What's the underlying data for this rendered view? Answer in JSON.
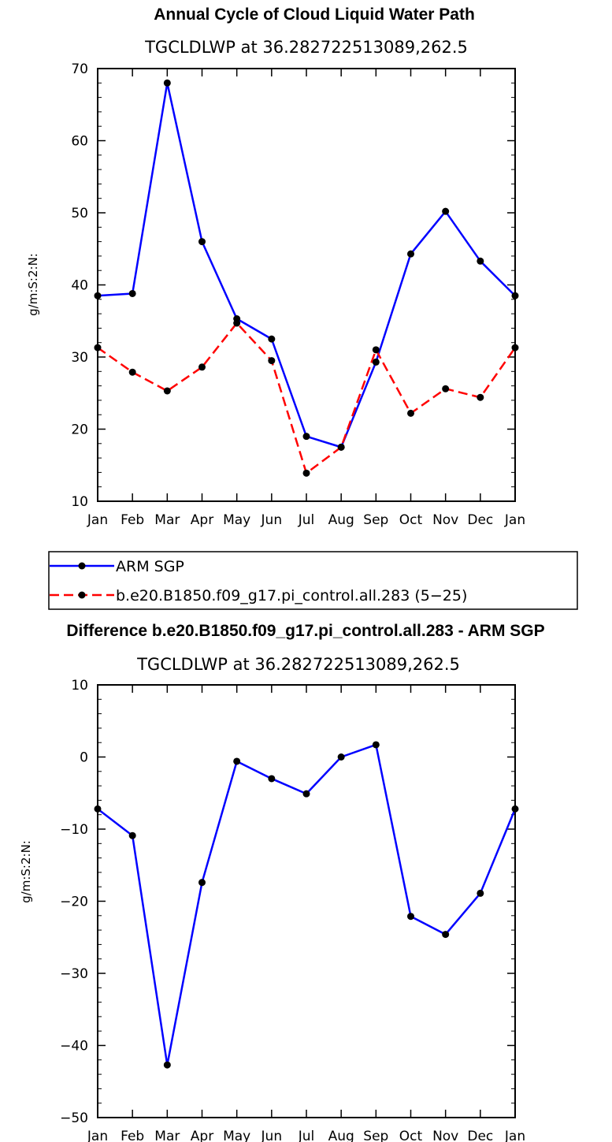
{
  "chart_data": [
    {
      "type": "line",
      "title": "Annual Cycle of Cloud Liquid Water Path",
      "subtitle": "TGCLDLWP  at  36.282722513089,262.5",
      "ylabel": "g/m:S:2:N:",
      "categories": [
        "Jan",
        "Feb",
        "Mar",
        "Apr",
        "May",
        "Jun",
        "Jul",
        "Aug",
        "Sep",
        "Oct",
        "Nov",
        "Dec",
        "Jan"
      ],
      "ylim": [
        10,
        70
      ],
      "yticks": [
        "10",
        "20",
        "30",
        "40",
        "50",
        "60",
        "70"
      ],
      "series": [
        {
          "name": "ARM SGP",
          "color": "#0000ff",
          "dash": "solid",
          "values": [
            38.5,
            38.8,
            68.0,
            46.0,
            35.3,
            32.5,
            19.0,
            17.5,
            29.3,
            44.3,
            50.2,
            43.3,
            38.5
          ]
        },
        {
          "name": "b.e20.B1850.f09_g17.pi_control.all.283 (5−25)",
          "color": "#ff0000",
          "dash": "dashed",
          "values": [
            31.3,
            27.9,
            25.3,
            28.6,
            34.7,
            29.5,
            13.9,
            17.5,
            31.0,
            22.2,
            25.6,
            24.4,
            31.3
          ]
        }
      ]
    },
    {
      "type": "line",
      "title": "Difference b.e20.B1850.f09_g17.pi_control.all.283 - ARM SGP",
      "subtitle": "TGCLDLWP  at  36.282722513089,262.5",
      "ylabel": "g/m:S:2:N:",
      "categories": [
        "Jan",
        "Feb",
        "Mar",
        "Apr",
        "May",
        "Jun",
        "Jul",
        "Aug",
        "Sep",
        "Oct",
        "Nov",
        "Dec",
        "Jan"
      ],
      "ylim": [
        -50,
        10
      ],
      "yticks": [
        "−50",
        "−40",
        "−30",
        "−20",
        "−10",
        "0",
        "10"
      ],
      "series": [
        {
          "name": "",
          "color": "#0000ff",
          "dash": "solid",
          "values": [
            -7.2,
            -10.9,
            -42.7,
            -17.4,
            -0.6,
            -3.0,
            -5.1,
            0.0,
            1.7,
            -22.1,
            -24.6,
            -18.9,
            -7.2
          ]
        }
      ]
    }
  ]
}
